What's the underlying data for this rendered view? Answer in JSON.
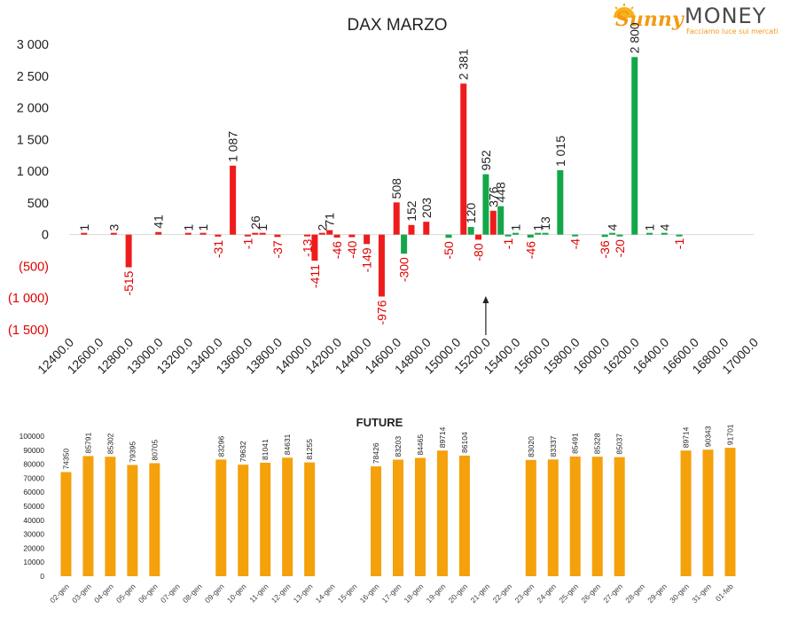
{
  "logo": {
    "name_part1": "Sunny",
    "name_part2": "MONEY",
    "tagline": "Facciamo luce sui mercati"
  },
  "colors": {
    "negative": "#ee1c1c",
    "positive": "#14a74a",
    "future": "#f4a10c",
    "negative_label": "#e00000",
    "label": "#222222"
  },
  "chart_data": [
    {
      "type": "bar",
      "title": "DAX MARZO",
      "xlabel": "",
      "ylabel": "",
      "ylim": [
        -1500,
        3000
      ],
      "y_tick_labels": [
        "3 000",
        "2 500",
        "2 000",
        "1 500",
        "1 000",
        "500",
        "0",
        "(500)",
        "(1 000)",
        "(1 500)"
      ],
      "x_tick_labels": [
        "12400.0",
        "12600.0",
        "12800.0",
        "13000.0",
        "13200.0",
        "13400.0",
        "13600.0",
        "13800.0",
        "14000.0",
        "14200.0",
        "14400.0",
        "14600.0",
        "14800.0",
        "15000.0",
        "15200.0",
        "15400.0",
        "15600.0",
        "15800.0",
        "16000.0",
        "16200.0",
        "16400.0",
        "16600.0",
        "16800.0",
        "17000.0"
      ],
      "xlim": [
        12400,
        17000
      ],
      "marker": {
        "x": 15200,
        "description": "arrow"
      },
      "series": [
        {
          "color": "negative",
          "points": [
            {
              "x": 12500,
              "value": 1,
              "label": "1"
            },
            {
              "x": 12700,
              "value": 3,
              "label": "3"
            },
            {
              "x": 12800,
              "value": -515,
              "label": "-515"
            },
            {
              "x": 13000,
              "value": 41,
              "label": "41"
            },
            {
              "x": 13200,
              "value": 1,
              "label": "1"
            },
            {
              "x": 13300,
              "value": 1,
              "label": "1"
            },
            {
              "x": 13400,
              "value": -31,
              "label": "-31"
            },
            {
              "x": 13500,
              "value": 1087,
              "label": "1 087"
            },
            {
              "x": 13600,
              "value": -1,
              "label": "-1"
            },
            {
              "x": 13650,
              "value": 26,
              "label": "26"
            },
            {
              "x": 13700,
              "value": 1,
              "label": "1"
            },
            {
              "x": 13800,
              "value": -37,
              "label": "-37"
            },
            {
              "x": 14000,
              "value": -13,
              "label": "-13"
            },
            {
              "x": 14050,
              "value": -411,
              "label": "-411"
            },
            {
              "x": 14100,
              "value": 2,
              "label": "2"
            },
            {
              "x": 14150,
              "value": 71,
              "label": "71"
            },
            {
              "x": 14200,
              "value": -46,
              "label": "-46"
            },
            {
              "x": 14300,
              "value": -40,
              "label": "-40"
            },
            {
              "x": 14400,
              "value": -149,
              "label": "-149"
            },
            {
              "x": 14500,
              "value": -976,
              "label": "-976"
            },
            {
              "x": 14600,
              "value": 508,
              "label": "508"
            },
            {
              "x": 14700,
              "value": 152,
              "label": "152"
            },
            {
              "x": 14800,
              "value": 203,
              "label": "203"
            },
            {
              "x": 15050,
              "value": 2381,
              "label": "2 381"
            },
            {
              "x": 15150,
              "value": -80,
              "label": "-80"
            },
            {
              "x": 15250,
              "value": 376,
              "label": "376"
            }
          ]
        },
        {
          "color": "positive",
          "points": [
            {
              "x": 14650,
              "value": -300,
              "label": "-300"
            },
            {
              "x": 14950,
              "value": -50,
              "label": "-50"
            },
            {
              "x": 15100,
              "value": 120,
              "label": "120"
            },
            {
              "x": 15200,
              "value": 952,
              "label": "952"
            },
            {
              "x": 15300,
              "value": 448,
              "label": "448"
            },
            {
              "x": 15350,
              "value": -1,
              "label": "-1"
            },
            {
              "x": 15400,
              "value": 1,
              "label": "1"
            },
            {
              "x": 15500,
              "value": -46,
              "label": "-46"
            },
            {
              "x": 15550,
              "value": 1,
              "label": "1"
            },
            {
              "x": 15600,
              "value": 13,
              "label": "13"
            },
            {
              "x": 15700,
              "value": 1015,
              "label": "1 015"
            },
            {
              "x": 15800,
              "value": -4,
              "label": "-4"
            },
            {
              "x": 16000,
              "value": -36,
              "label": "-36"
            },
            {
              "x": 16050,
              "value": 4,
              "label": "4"
            },
            {
              "x": 16100,
              "value": -20,
              "label": "-20"
            },
            {
              "x": 16200,
              "value": 2800,
              "label": "2 800"
            },
            {
              "x": 16300,
              "value": 1,
              "label": "1"
            },
            {
              "x": 16400,
              "value": 4,
              "label": "4"
            },
            {
              "x": 16500,
              "value": -1,
              "label": "-1"
            }
          ]
        }
      ]
    },
    {
      "type": "bar",
      "title": "FUTURE",
      "xlabel": "",
      "ylabel": "",
      "ylim": [
        0,
        100000
      ],
      "y_tick_labels": [
        "100000",
        "90000",
        "80000",
        "70000",
        "60000",
        "50000",
        "40000",
        "30000",
        "20000",
        "10000",
        "0"
      ],
      "categories": [
        "02-gen",
        "03-gen",
        "04-gen",
        "05-gen",
        "06-gen",
        "07-gen",
        "08-gen",
        "09-gen",
        "10-gen",
        "11-gen",
        "12-gen",
        "13-gen",
        "14-gen",
        "15-gen",
        "16-gen",
        "17-gen",
        "18-gen",
        "19-gen",
        "20-gen",
        "21-gen",
        "22-gen",
        "23-gen",
        "24-gen",
        "25-gen",
        "26-gen",
        "27-gen",
        "28-gen",
        "29-gen",
        "30-gen",
        "31-gen",
        "01-feb"
      ],
      "values": [
        74350,
        85791,
        85302,
        79395,
        80705,
        null,
        null,
        83296,
        79632,
        81041,
        84631,
        81255,
        null,
        null,
        78426,
        83203,
        84465,
        89714,
        86104,
        null,
        null,
        83020,
        83337,
        85491,
        85328,
        85037,
        null,
        null,
        89714,
        90343,
        91701
      ],
      "labels": [
        "74350",
        "85791",
        "85302",
        "79395",
        "80705",
        "",
        "",
        "83296",
        "79632",
        "81041",
        "84631",
        "81255",
        "",
        "",
        "78426",
        "83203",
        "84465",
        "89714",
        "86104",
        "",
        "",
        "83020",
        "83337",
        "85491",
        "85328",
        "85037",
        "",
        "",
        "89714",
        "90343",
        "91701"
      ]
    }
  ]
}
